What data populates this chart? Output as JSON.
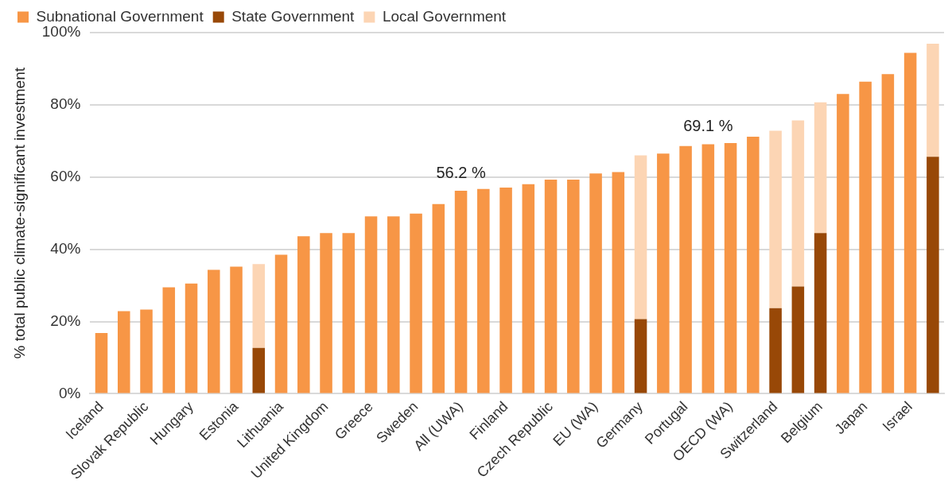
{
  "chart_data": {
    "type": "bar",
    "stacked": true,
    "ylabel": "% total public climate-significant investment",
    "categories": [
      "Iceland",
      null,
      "Slovak Republic",
      null,
      "Hungary",
      null,
      "Estonia",
      null,
      "Lithuania",
      null,
      "United Kingdom",
      null,
      "Greece",
      null,
      "Sweden",
      null,
      "All (UWA)",
      null,
      "Finland",
      null,
      "Czech Republic",
      null,
      "EU (WA)",
      null,
      "Germany",
      null,
      "Portugal",
      null,
      "OECD (WA)",
      null,
      "Switzerland",
      null,
      "Belgium",
      null,
      "Japan",
      null,
      "Israel",
      null
    ],
    "series": [
      {
        "name": "Subnational Government",
        "color": "#f79646",
        "values": [
          16.8,
          22.9,
          23.3,
          29.5,
          30.5,
          34.3,
          35.2,
          null,
          38.5,
          43.6,
          44.5,
          44.5,
          49.1,
          49.1,
          49.9,
          52.5,
          56.2,
          56.7,
          57.1,
          58.0,
          59.3,
          59.3,
          61.0,
          61.4,
          null,
          66.5,
          68.6,
          69.1,
          69.4,
          71.2,
          null,
          null,
          null,
          83.0,
          86.4,
          88.5,
          94.4,
          null
        ],
        "value_labels": [
          null,
          null,
          null,
          null,
          null,
          null,
          null,
          null,
          null,
          null,
          null,
          null,
          null,
          null,
          null,
          null,
          "56.2 %",
          null,
          null,
          null,
          null,
          null,
          null,
          null,
          null,
          null,
          null,
          "69.1 %",
          null,
          null,
          null,
          null,
          null,
          null,
          null,
          null,
          null,
          null
        ]
      },
      {
        "name": "State Government",
        "color": "#984807",
        "values": [
          null,
          null,
          null,
          null,
          null,
          null,
          null,
          12.7,
          null,
          null,
          null,
          null,
          null,
          null,
          null,
          null,
          null,
          null,
          null,
          null,
          null,
          null,
          null,
          null,
          20.7,
          null,
          null,
          null,
          null,
          null,
          23.7,
          29.7,
          44.5,
          null,
          null,
          null,
          null,
          65.6
        ]
      },
      {
        "name": "Local Government",
        "color": "#fcd5b4",
        "values": [
          null,
          null,
          null,
          null,
          null,
          null,
          null,
          23.2,
          null,
          null,
          null,
          null,
          null,
          null,
          null,
          null,
          null,
          null,
          null,
          null,
          null,
          null,
          null,
          null,
          45.3,
          null,
          null,
          null,
          null,
          null,
          49.1,
          46.0,
          36.2,
          null,
          null,
          null,
          null,
          31.3
        ]
      }
    ],
    "ylim": [
      0,
      100
    ],
    "yticks": [
      {
        "value": 0,
        "label": "0%"
      },
      {
        "value": 20,
        "label": "20%"
      },
      {
        "value": 40,
        "label": "40%"
      },
      {
        "value": 60,
        "label": "60%"
      },
      {
        "value": 80,
        "label": "80%"
      },
      {
        "value": 100,
        "label": "100%"
      }
    ],
    "grid": "y",
    "legend": "top"
  }
}
